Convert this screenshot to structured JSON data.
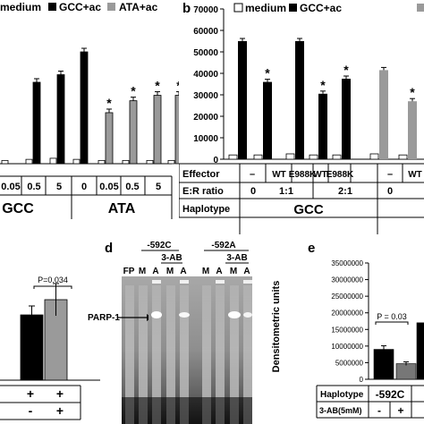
{
  "panel_a": {
    "legend": [
      "medium",
      "GCC+ac",
      "ATA+ac"
    ],
    "table_values": [
      "0.05",
      "0.5",
      "5",
      "0",
      "0.05",
      "0.5",
      "5"
    ],
    "haplotypes": [
      "GCC",
      "ATA"
    ],
    "star": "*"
  },
  "panel_b": {
    "letter": "b",
    "legend": [
      "medium",
      "GCC+ac"
    ],
    "y_ticks": [
      "70000",
      "60000",
      "50000",
      "40000",
      "30000",
      "20000",
      "10000",
      "0"
    ],
    "row_labels": [
      "Effector",
      "E:R ratio",
      "Haplotype"
    ],
    "effector": [
      "–",
      "WT",
      "E988K",
      "WT",
      "E988K",
      "–",
      "WT"
    ],
    "er_ratio": [
      "0",
      "1:1",
      "2:1",
      "0"
    ],
    "haplotype": "GCC",
    "star": "*"
  },
  "panel_c": {
    "p_value": "P=0.034",
    "row1": [
      "+",
      "+"
    ],
    "row2": [
      "-",
      "+"
    ]
  },
  "panel_d": {
    "letter": "d",
    "alleles": [
      "-592C",
      "-592A"
    ],
    "treatment": [
      "3-AB",
      "3-AB"
    ],
    "lanes": [
      "FP",
      "M",
      "A",
      "M",
      "A",
      "M",
      "A",
      "M",
      "A"
    ],
    "band_label": "PARP-1"
  },
  "panel_e": {
    "letter": "e",
    "y_label": "Densitometric units",
    "y_ticks": [
      "35000000",
      "30000000",
      "25000000",
      "20000000",
      "15000000",
      "10000000",
      "5000000",
      "0"
    ],
    "p_value": "P = 0.03",
    "row_labels": [
      "Haplotype",
      "3-AB(5mM)"
    ],
    "haplotype": "-592C",
    "ab_values": [
      "-",
      "+"
    ]
  },
  "chart_data": [
    {
      "type": "bar",
      "panel": "a",
      "series": [
        {
          "name": "medium",
          "values": [
            1500,
            2000,
            2500,
            2000,
            1500,
            1500,
            1500,
            1500
          ]
        },
        {
          "name": "GCC+ac",
          "values": [
            null,
            37500,
            41000,
            51500,
            null,
            null,
            null,
            null
          ]
        },
        {
          "name": "ATA+ac",
          "values": [
            null,
            null,
            null,
            null,
            23500,
            29000,
            31500,
            31500
          ]
        }
      ]
    },
    {
      "type": "bar",
      "panel": "b",
      "ylim": [
        0,
        70000
      ],
      "series": [
        {
          "name": "medium",
          "values": [
            2000,
            2000,
            2500,
            2000,
            2000,
            2500,
            2000
          ]
        },
        {
          "name": "GCC+ac",
          "values": [
            55000,
            36000,
            55000,
            30500,
            37500,
            41500,
            27000
          ]
        }
      ]
    },
    {
      "type": "bar",
      "panel": "c",
      "values": [
        null,
        12000,
        14800
      ]
    },
    {
      "type": "bar",
      "panel": "e",
      "ylim": [
        0,
        35000000
      ],
      "values": [
        9000000,
        4700000,
        17000000
      ]
    }
  ]
}
